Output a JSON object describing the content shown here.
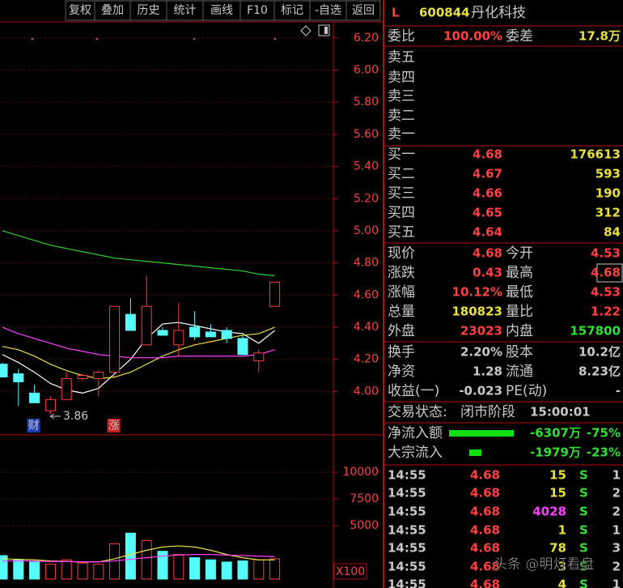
{
  "toolbar": {
    "buttons": [
      "复权",
      "叠加",
      "历史",
      "统计",
      "画线",
      "F10",
      "标记",
      "-自选",
      "返回"
    ]
  },
  "header": {
    "flag": "L",
    "code": "600844",
    "name": "丹化科技"
  },
  "kline": {
    "ylim": [
      3.76,
      6.3
    ],
    "yticks": [
      {
        "value": 6.2,
        "label": "6.20"
      },
      {
        "value": 6.0,
        "label": "6.00"
      },
      {
        "value": 5.8,
        "label": "5.80"
      },
      {
        "value": 5.6,
        "label": "5.60"
      },
      {
        "value": 5.4,
        "label": "5.40"
      },
      {
        "value": 5.2,
        "label": "5.20"
      },
      {
        "value": 5.0,
        "label": "5.00"
      },
      {
        "value": 4.8,
        "label": "4.80"
      },
      {
        "value": 4.6,
        "label": "4.60"
      },
      {
        "value": 4.4,
        "label": "4.40"
      },
      {
        "value": 4.2,
        "label": "4.20"
      },
      {
        "value": 4.0,
        "label": "4.00"
      }
    ],
    "up_color": "#ff3c3c",
    "down_color": "#54fcfc",
    "open": [
      4.17,
      4.11,
      3.99,
      3.88,
      3.95,
      4.08,
      4.08,
      4.12,
      4.48,
      4.29,
      4.38,
      4.29,
      4.4,
      4.37,
      4.38,
      4.33,
      4.19,
      4.53
    ],
    "high": [
      4.18,
      4.14,
      4.04,
      3.97,
      4.12,
      4.11,
      4.13,
      4.53,
      4.58,
      4.72,
      4.4,
      4.55,
      4.5,
      4.42,
      4.4,
      4.35,
      4.26,
      4.68
    ],
    "low": [
      4.09,
      3.91,
      3.93,
      3.86,
      3.95,
      4.07,
      3.97,
      4.12,
      4.38,
      4.29,
      4.35,
      4.22,
      4.32,
      4.34,
      4.3,
      4.23,
      4.12,
      4.53
    ],
    "close": [
      4.09,
      4.06,
      3.93,
      3.95,
      4.08,
      4.1,
      4.12,
      4.53,
      4.38,
      4.53,
      4.35,
      4.38,
      4.34,
      4.34,
      4.33,
      4.23,
      4.24,
      4.68
    ],
    "ma": [
      {
        "color": "#ffffff",
        "values": [
          4.23,
          4.18,
          4.12,
          4.05,
          4.01,
          3.99,
          4.02,
          4.11,
          4.2,
          4.33,
          4.42,
          4.43,
          4.41,
          4.39,
          4.37,
          4.36,
          4.3,
          4.38
        ]
      },
      {
        "color": "#e8e040",
        "values": [
          4.28,
          4.26,
          4.22,
          4.17,
          4.13,
          4.1,
          4.08,
          4.09,
          4.12,
          4.17,
          4.22,
          4.26,
          4.29,
          4.31,
          4.33,
          4.35,
          4.36,
          4.4
        ]
      },
      {
        "color": "#ff40ff",
        "values": [
          4.4,
          4.36,
          4.33,
          4.3,
          4.27,
          4.25,
          4.23,
          4.22,
          4.21,
          4.21,
          4.21,
          4.22,
          4.22,
          4.22,
          4.22,
          4.22,
          4.23,
          4.26
        ]
      },
      {
        "color": "#30d030",
        "values": [
          5.0,
          4.97,
          4.94,
          4.91,
          4.89,
          4.87,
          4.85,
          4.83,
          4.82,
          4.81,
          4.8,
          4.79,
          4.78,
          4.77,
          4.76,
          4.75,
          4.73,
          4.72
        ]
      }
    ],
    "low_label": "3.86",
    "markers": [
      {
        "label": "财",
        "color": "#1e3cb4"
      },
      {
        "label": "涨",
        "color": "#c81e1e"
      }
    ]
  },
  "volume": {
    "ylim": [
      0,
      12000
    ],
    "yticks": [
      10000,
      7500,
      5000
    ],
    "unit": "X100",
    "values": [
      2200,
      1800,
      1600,
      1400,
      1800,
      1500,
      1400,
      3300,
      4300,
      3600,
      2600,
      2300,
      2000,
      1800,
      1600,
      1700,
      1800,
      1900
    ],
    "ma": [
      {
        "color": "#e8e040",
        "values": [
          1900,
          1850,
          1800,
          1700,
          1650,
          1600,
          1600,
          1900,
          2300,
          2700,
          3000,
          3100,
          3000,
          2700,
          2300,
          2000,
          1800,
          1800
        ]
      },
      {
        "color": "#ff40ff",
        "values": [
          1700,
          1700,
          1680,
          1650,
          1640,
          1620,
          1610,
          1700,
          1850,
          2000,
          2150,
          2250,
          2300,
          2300,
          2250,
          2200,
          2150,
          2100
        ]
      }
    ]
  },
  "quote": {
    "ratio": {
      "label": "委比",
      "value": "100.00%"
    },
    "diff": {
      "label": "委差",
      "value": "17.8万"
    },
    "sell": [
      {
        "label": "卖五"
      },
      {
        "label": "卖四"
      },
      {
        "label": "卖三"
      },
      {
        "label": "卖二"
      },
      {
        "label": "卖一"
      }
    ],
    "buy": [
      {
        "label": "买一",
        "price": "4.68",
        "volume": "176613"
      },
      {
        "label": "买二",
        "price": "4.67",
        "volume": "593"
      },
      {
        "label": "买三",
        "price": "4.66",
        "volume": "190"
      },
      {
        "label": "买四",
        "price": "4.65",
        "volume": "312"
      },
      {
        "label": "买五",
        "price": "4.64",
        "volume": "84"
      }
    ],
    "stats": [
      [
        {
          "label": "现价",
          "value": "4.68",
          "color": "#ff4040"
        },
        {
          "label": "今开",
          "value": "4.53",
          "color": "#ff4040"
        }
      ],
      [
        {
          "label": "涨跌",
          "value": "0.43",
          "color": "#ff4040"
        },
        {
          "label": "最高",
          "value": "4.68",
          "color": "#ff4040"
        }
      ],
      [
        {
          "label": "涨幅",
          "value": "10.12%",
          "color": "#ff4040"
        },
        {
          "label": "最低",
          "value": "4.53",
          "color": "#ff4040"
        }
      ],
      [
        {
          "label": "总量",
          "value": "180823",
          "color": "#e8e040"
        },
        {
          "label": "量比",
          "value": "1.22",
          "color": "#ff4040"
        }
      ],
      [
        {
          "label": "外盘",
          "value": "23023",
          "color": "#ff4040"
        },
        {
          "label": "内盘",
          "value": "157800",
          "color": "#30e030"
        }
      ]
    ],
    "stats2": [
      [
        {
          "label": "换手",
          "value": "2.20%"
        },
        {
          "label": "股本",
          "value": "10.2亿"
        }
      ],
      [
        {
          "label": "净资",
          "value": "1.28"
        },
        {
          "label": "流通",
          "value": "8.23亿"
        }
      ],
      [
        {
          "label": "收益(一)",
          "value": "-0.023"
        },
        {
          "label": "PE(动)",
          "value": "-"
        }
      ]
    ],
    "status": {
      "label": "交易状态:",
      "value": "闭市阶段",
      "time": "15:00:01"
    },
    "flows": [
      {
        "label": "净流入额",
        "amount": "-6307万",
        "pct": "-75%"
      },
      {
        "label": "大宗流入",
        "amount": "-1979万",
        "pct": "-23%"
      }
    ],
    "ticks": [
      {
        "time": "14:55",
        "price": "4.68",
        "volume": "15",
        "side": "S",
        "count": "1"
      },
      {
        "time": "14:55",
        "price": "4.68",
        "volume": "15",
        "side": "S",
        "count": "2"
      },
      {
        "time": "14:55",
        "price": "4.68",
        "volume": "4028",
        "side": "S",
        "count": "2",
        "color": "#ff40ff"
      },
      {
        "time": "14:55",
        "price": "4.68",
        "volume": "1",
        "side": "S",
        "count": "1"
      },
      {
        "time": "14:55",
        "price": "4.68",
        "volume": "78",
        "side": "S",
        "count": "3"
      },
      {
        "time": "14:55",
        "price": "4.68",
        "volume": "3",
        "side": "S",
        "count": "2"
      },
      {
        "time": "14:55",
        "price": "4.68",
        "volume": "4",
        "side": "S",
        "count": "1"
      }
    ]
  },
  "watermark": "头条 @明灯看盘"
}
